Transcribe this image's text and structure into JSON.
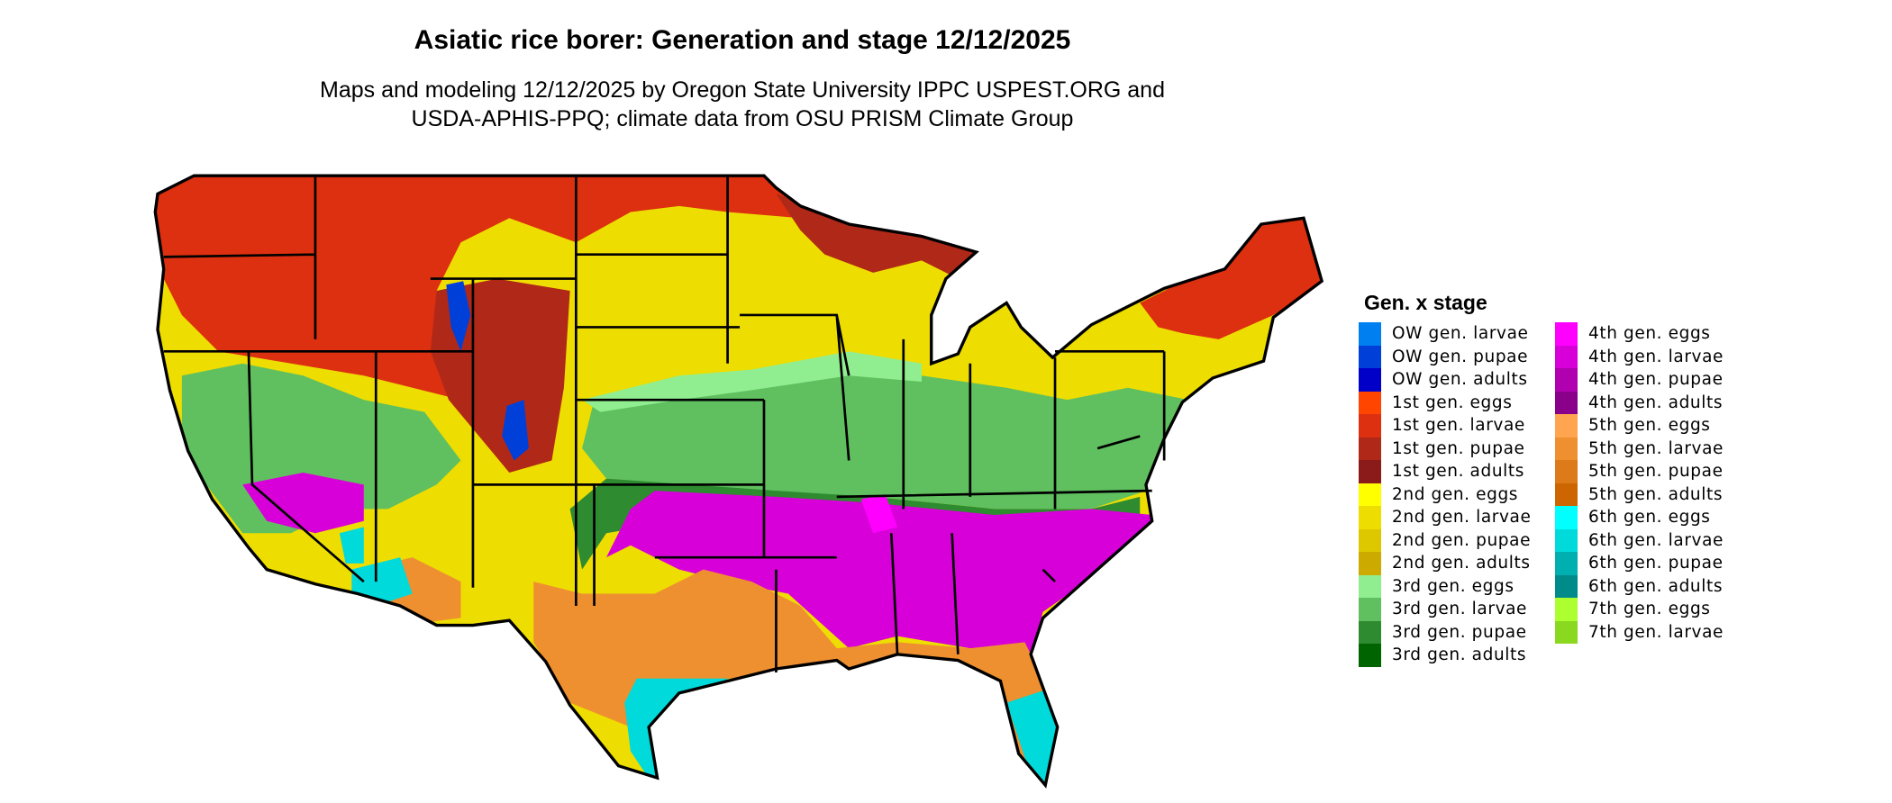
{
  "title": "Asiatic rice borer: Generation and stage 12/12/2025",
  "subtitle_line1": "Maps and modeling 12/12/2025 by Oregon State University IPPC USPEST.ORG and",
  "subtitle_line2": "USDA-APHIS-PPQ; climate data from OSU PRISM Climate Group",
  "legend": {
    "title": "Gen. x stage",
    "items": [
      {
        "label": "OW gen. larvae",
        "color": "#0080f0"
      },
      {
        "label": "OW gen. pupae",
        "color": "#0040d8"
      },
      {
        "label": "OW gen. adults",
        "color": "#0000c8"
      },
      {
        "label": "1st gen. eggs",
        "color": "#ff4500"
      },
      {
        "label": "1st gen. larvae",
        "color": "#dc3010"
      },
      {
        "label": "1st gen. pupae",
        "color": "#b02818"
      },
      {
        "label": "1st gen. adults",
        "color": "#8b1a1a"
      },
      {
        "label": "2nd gen. eggs",
        "color": "#ffff00"
      },
      {
        "label": "2nd gen. larvae",
        "color": "#eedd00"
      },
      {
        "label": "2nd gen. pupae",
        "color": "#ddc800"
      },
      {
        "label": "2nd gen. adults",
        "color": "#cdaa00"
      },
      {
        "label": "3rd gen. eggs",
        "color": "#90ee90"
      },
      {
        "label": "3rd gen. larvae",
        "color": "#60c060"
      },
      {
        "label": "3rd gen. pupae",
        "color": "#2e8b30"
      },
      {
        "label": "3rd gen. adults",
        "color": "#006400"
      },
      {
        "label": "4th gen. eggs",
        "color": "#ff00ff"
      },
      {
        "label": "4th gen. larvae",
        "color": "#d800d8"
      },
      {
        "label": "4th gen. pupae",
        "color": "#b000b0"
      },
      {
        "label": "4th gen. adults",
        "color": "#8b008b"
      },
      {
        "label": "5th gen. eggs",
        "color": "#ffa54f"
      },
      {
        "label": "5th gen. larvae",
        "color": "#ee9030"
      },
      {
        "label": "5th gen. pupae",
        "color": "#dd7a1a"
      },
      {
        "label": "5th gen. adults",
        "color": "#cd6600"
      },
      {
        "label": "6th gen. eggs",
        "color": "#00ffff"
      },
      {
        "label": "6th gen. larvae",
        "color": "#00dada"
      },
      {
        "label": "6th gen. pupae",
        "color": "#00b0b0"
      },
      {
        "label": "6th gen. adults",
        "color": "#008b8b"
      },
      {
        "label": "7th gen. eggs",
        "color": "#adff2f"
      },
      {
        "label": "7th gen. larvae",
        "color": "#8ad820"
      }
    ]
  }
}
